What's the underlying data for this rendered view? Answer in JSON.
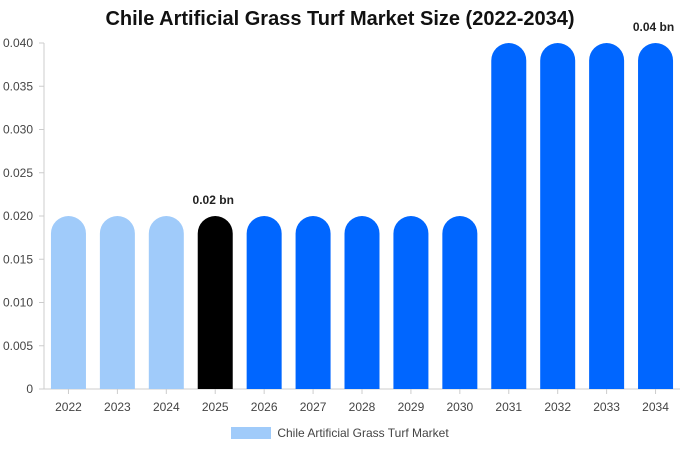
{
  "chart_data": {
    "type": "bar",
    "title": "Chile Artificial Grass Turf Market Size (2022-2034)",
    "categories": [
      "2022",
      "2023",
      "2024",
      "2025",
      "2026",
      "2027",
      "2028",
      "2029",
      "2030",
      "2031",
      "2032",
      "2033",
      "2034"
    ],
    "series": [
      {
        "name": "Chile Artificial Grass Turf Market",
        "values": [
          0.02,
          0.02,
          0.02,
          0.02,
          0.02,
          0.02,
          0.02,
          0.02,
          0.02,
          0.04,
          0.04,
          0.04,
          0.04
        ]
      }
    ],
    "ylim": [
      0,
      0.04
    ],
    "yticks": [
      "0",
      "0.005",
      "0.010",
      "0.015",
      "0.020",
      "0.025",
      "0.030",
      "0.035",
      "0.040"
    ],
    "data_labels": [
      {
        "category": "2025",
        "text": "0.02 bn"
      },
      {
        "category": "2034",
        "text": "0.04 bn"
      }
    ],
    "bar_colors": [
      "#a0cbfa",
      "#a0cbfa",
      "#a0cbfa",
      "#000000",
      "#0066ff",
      "#0066ff",
      "#0066ff",
      "#0066ff",
      "#0066ff",
      "#0066ff",
      "#0066ff",
      "#0066ff",
      "#0066ff"
    ],
    "grid": false,
    "legend_position": "bottom"
  }
}
